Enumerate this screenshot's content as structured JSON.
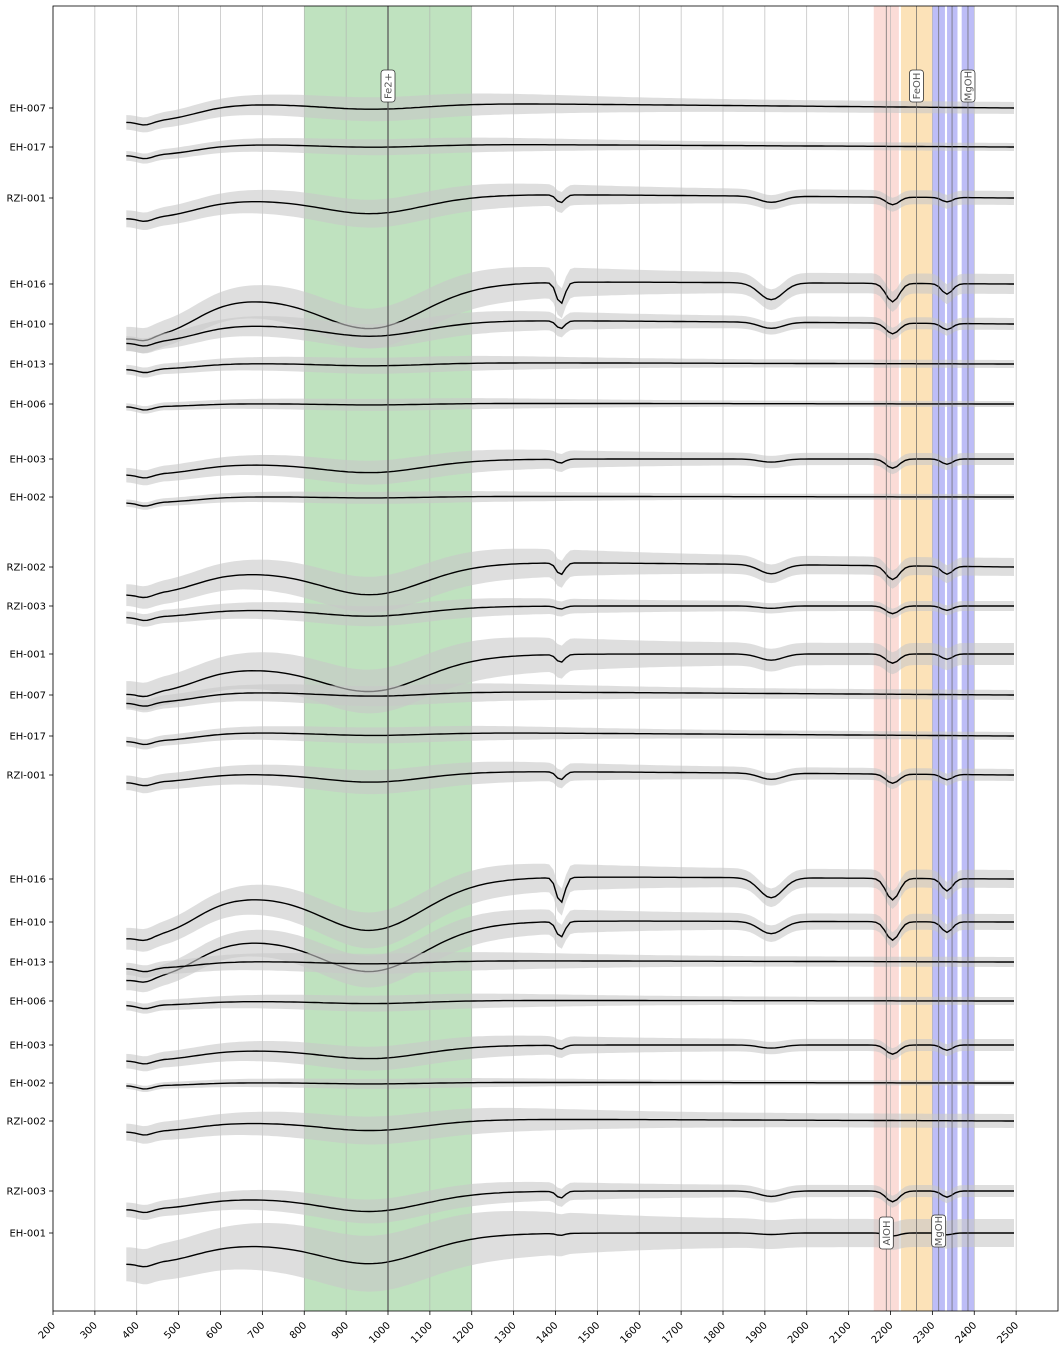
{
  "chart_data": {
    "type": "line",
    "title": "",
    "xlabel": "",
    "ylabel": "",
    "xlim": [
      200,
      2600
    ],
    "x_ticks": [
      200,
      300,
      400,
      500,
      600,
      700,
      800,
      900,
      1000,
      1100,
      1200,
      1300,
      1400,
      1500,
      1600,
      1700,
      1800,
      1900,
      2000,
      2100,
      2200,
      2300,
      2400,
      2500
    ],
    "grid": "vertical",
    "line_color": "#000000",
    "uncertainty_color": "#c8c8c8",
    "x_range": [
      375,
      2500
    ],
    "series_labels": [
      "EH-007",
      "EH-017",
      "RZI-001",
      "EH-016",
      "EH-010",
      "EH-013",
      "EH-006",
      "EH-003",
      "EH-002",
      "RZI-002",
      "RZI-003",
      "EH-001",
      "EH-007",
      "EH-017",
      "RZI-001",
      "EH-016",
      "EH-010",
      "EH-013",
      "EH-006",
      "EH-003",
      "EH-002",
      "RZI-002",
      "RZI-003",
      "EH-001"
    ],
    "bands": [
      {
        "label": "Fe2+",
        "range": [
          800,
          1200
        ],
        "center": 1000,
        "color": "#2ca02c",
        "opacity": 0.3
      },
      {
        "label": "AlOH",
        "range": [
          2160,
          2220
        ],
        "center": 2190,
        "color": "#f08070",
        "opacity": 0.28
      },
      {
        "label": "FeOH",
        "range": [
          2225,
          2300
        ],
        "center": 2262,
        "color": "#f5a623",
        "opacity": 0.32
      },
      {
        "label": "MgOH",
        "range": [
          2300,
          2330
        ],
        "center": 2315,
        "color": "#0000e0",
        "opacity": 0.26
      },
      {
        "label": "MgOH",
        "range": [
          2335,
          2360
        ],
        "center": 2347,
        "color": "#0000e0",
        "opacity": 0.26
      },
      {
        "label": "MgOH",
        "range": [
          2370,
          2400
        ],
        "center": 2385,
        "color": "#0000e0",
        "opacity": 0.26
      }
    ],
    "band_label_positions": {
      "Fe2+": "top",
      "FeOH": "top",
      "MgOH": "top",
      "AlOH": "bottom"
    }
  }
}
